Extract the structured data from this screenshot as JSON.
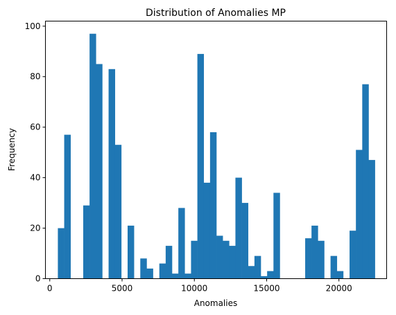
{
  "chart_data": {
    "type": "bar",
    "title": "Distribution of Anomalies MP",
    "xlabel": "Anomalies",
    "ylabel": "Frequency",
    "xlim": [
      -300,
      23300
    ],
    "ylim": [
      0,
      102
    ],
    "xticks": [
      0,
      5000,
      10000,
      15000,
      20000
    ],
    "xtick_labels": [
      "0",
      "5000",
      "10000",
      "15000",
      "20000"
    ],
    "yticks": [
      0,
      20,
      40,
      60,
      80,
      100
    ],
    "ytick_labels": [
      "0",
      "20",
      "40",
      "60",
      "80",
      "100"
    ],
    "bin_range": [
      560,
      22490
    ],
    "bin_count": 50,
    "values": [
      20,
      57,
      0,
      0,
      29,
      97,
      85,
      0,
      83,
      53,
      0,
      21,
      0,
      8,
      4,
      0,
      6,
      13,
      2,
      28,
      2,
      15,
      89,
      38,
      58,
      17,
      15,
      13,
      40,
      30,
      5,
      9,
      1,
      3,
      34,
      0,
      0,
      0,
      0,
      16,
      21,
      15,
      0,
      9,
      3,
      0,
      19,
      51,
      77,
      47
    ],
    "grid": false,
    "legend": "none",
    "bar_color": "#1f77b4"
  }
}
